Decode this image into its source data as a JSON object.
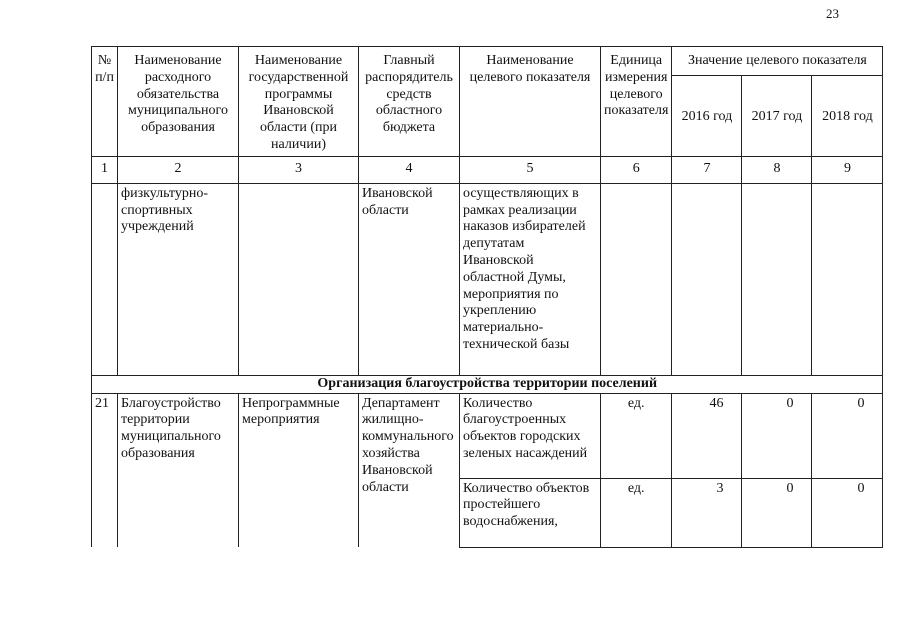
{
  "page_number": "23",
  "headers": {
    "c1": "№ п/п",
    "c2": "Наименование расходного обязательства муниципального образования",
    "c3": "Наименование государственной программы Ивановской области (при наличии)",
    "c4": "Главный распорядитель средств областного бюджета",
    "c5": "Наименование целевого показателя",
    "c6": "Единица измерения целевого показателя",
    "group": "Значение целевого показателя",
    "y2016": "2016 год",
    "y2017": "2017 год",
    "y2018": "2018 год"
  },
  "column_numbers": [
    "1",
    "2",
    "3",
    "4",
    "5",
    "6",
    "7",
    "8",
    "9"
  ],
  "continuation_row": {
    "c2": "физкультурно-спортивных учреждений",
    "c4": "Ивановской области",
    "c5": "осуществляющих в рамках реализации наказов избирателей депутатам Ивановской областной Думы, мероприятия по укреплению материально-технической базы"
  },
  "section_title": "Организация благоустройства территории поселений",
  "row21": {
    "no": "21",
    "obligation": "Благоустройство территории муниципального образования",
    "program": "Непрограммные мероприятия",
    "manager": "Департамент жилищно-коммунального хозяйства Ивановской области",
    "indicators": [
      {
        "name": "Количество благоустроенных объектов городских зеленых насаждений",
        "unit": "ед.",
        "v2016": "46",
        "v2017": "0",
        "v2018": "0"
      },
      {
        "name": "Количество объектов простейшего водоснабжения,",
        "unit": "ед.",
        "v2016": "3",
        "v2017": "0",
        "v2018": "0"
      }
    ]
  }
}
